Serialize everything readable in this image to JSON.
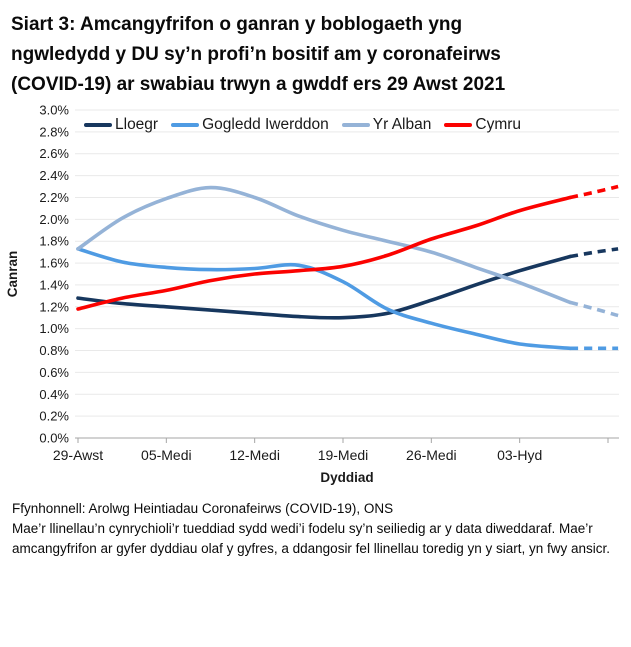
{
  "footer": {
    "source": "Ffynhonnell: Arolwg Heintiadau Coronafeirws (COVID-19), ONS",
    "note": "Mae’r llinellau’n cynrychioli’r tueddiad sydd wedi’i fodelu sy’n seiliedig ar y data diweddaraf. Mae’r amcangyfrifon ar gyfer dyddiau olaf y gyfres, a ddangosir fel llinellau toredig yn y siart, yn fwy ansicr."
  },
  "chart_data": {
    "type": "line",
    "title": "Siart 3: Amcangyfrifon o ganran y boblogaeth yng ngwledydd y DU sy’n profi’n bositif am y coronafeirws (COVID-19) ar swabiau trwyn a gwddf ers 29 Awst 2021",
    "xlabel": "Dyddiad",
    "ylabel": "Canran",
    "grid": true,
    "legend_position": "top",
    "ylim": [
      0,
      3.0
    ],
    "y_tick_step": 0.2,
    "y_tick_labels": [
      "0.0%",
      "0.2%",
      "0.4%",
      "0.6%",
      "0.8%",
      "1.0%",
      "1.2%",
      "1.4%",
      "1.6%",
      "1.8%",
      "2.0%",
      "2.2%",
      "2.4%",
      "2.6%",
      "2.8%",
      "3.0%"
    ],
    "x_ticks": {
      "labels": [
        "29-Awst",
        "05-Medi",
        "12-Medi",
        "19-Medi",
        "26-Medi",
        "03-Hyd"
      ],
      "days": [
        0,
        7,
        14,
        21,
        28,
        35
      ],
      "extra_tick_days": [
        42
      ]
    },
    "x_range_days": [
      0,
      42.8
    ],
    "dashed_note": "llinellau toredig = amcangyfrifon mwy ansicr ar gyfer dyddiau olaf y gyfres",
    "series": [
      {
        "name": "Lloegr",
        "color": "#17375e",
        "days": [
          0,
          3.5,
          7,
          10.5,
          14,
          17.5,
          21,
          24.5,
          28,
          31.5,
          35,
          39
        ],
        "values": [
          1.28,
          1.23,
          1.2,
          1.17,
          1.14,
          1.11,
          1.1,
          1.14,
          1.26,
          1.4,
          1.53,
          1.66
        ],
        "dash_days": [
          39,
          41,
          42.8
        ],
        "dash_values": [
          1.66,
          1.7,
          1.73
        ]
      },
      {
        "name": "Gogledd Iwerddon",
        "color": "#4f9be3",
        "days": [
          0,
          3.5,
          7,
          10.5,
          14,
          17.5,
          21,
          24.5,
          28,
          31.5,
          35,
          39
        ],
        "values": [
          1.73,
          1.61,
          1.56,
          1.54,
          1.55,
          1.58,
          1.43,
          1.18,
          1.05,
          0.95,
          0.86,
          0.82
        ],
        "dash_days": [
          39,
          41,
          42.8
        ],
        "dash_values": [
          0.82,
          0.82,
          0.82
        ]
      },
      {
        "name": "Yr Alban",
        "color": "#95b3d7",
        "days": [
          0,
          3.5,
          7,
          10.5,
          14,
          17.5,
          21,
          24.5,
          28,
          31.5,
          35,
          39
        ],
        "values": [
          1.73,
          2.01,
          2.19,
          2.29,
          2.2,
          2.03,
          1.9,
          1.8,
          1.7,
          1.56,
          1.42,
          1.24
        ],
        "dash_days": [
          39,
          41,
          42.8
        ],
        "dash_values": [
          1.24,
          1.18,
          1.12
        ]
      },
      {
        "name": "Cymru",
        "color": "#fb0200",
        "days": [
          0,
          3.5,
          7,
          10.5,
          14,
          17.5,
          21,
          24.5,
          28,
          31.5,
          35,
          39
        ],
        "values": [
          1.18,
          1.28,
          1.35,
          1.44,
          1.5,
          1.53,
          1.57,
          1.67,
          1.82,
          1.94,
          2.08,
          2.2
        ],
        "dash_days": [
          39,
          41,
          42.8
        ],
        "dash_values": [
          2.2,
          2.25,
          2.3
        ]
      }
    ],
    "colors": {
      "gridline": "#e9e9e9",
      "axis": "#a6a6a6"
    }
  }
}
